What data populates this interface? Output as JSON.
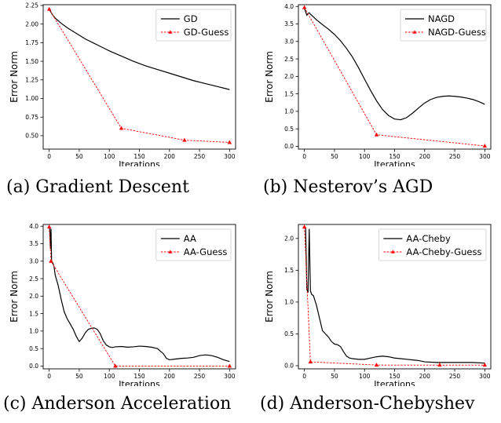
{
  "chart_data": [
    {
      "type": "line",
      "caption": "(a) Gradient Descent",
      "xlabel": "Iterations",
      "ylabel": "Error Norm",
      "xlim": [
        -10,
        310
      ],
      "ylim": [
        0.32,
        2.26
      ],
      "xticks": [
        0,
        50,
        100,
        150,
        200,
        250,
        300
      ],
      "yticks": [
        0.5,
        0.75,
        1.0,
        1.25,
        1.5,
        1.75,
        2.0,
        2.25
      ],
      "ytick_labels": [
        "0.50",
        "0.75",
        "1.00",
        "1.25",
        "1.50",
        "1.75",
        "2.00",
        "2.25"
      ],
      "legend_position": "top-right",
      "series": [
        {
          "name": "GD",
          "style": "solid",
          "color": "#000000",
          "x": [
            0,
            5,
            10,
            20,
            30,
            40,
            50,
            60,
            75,
            90,
            100,
            120,
            140,
            160,
            180,
            200,
            220,
            240,
            260,
            280,
            300
          ],
          "y": [
            2.2,
            2.13,
            2.08,
            2.01,
            1.95,
            1.9,
            1.85,
            1.8,
            1.74,
            1.68,
            1.64,
            1.57,
            1.5,
            1.44,
            1.39,
            1.34,
            1.29,
            1.24,
            1.2,
            1.16,
            1.12
          ]
        },
        {
          "name": "GD-Guess",
          "style": "dashed-marker",
          "color": "#ff0000",
          "x": [
            0,
            120,
            225,
            300
          ],
          "y": [
            2.2,
            0.6,
            0.44,
            0.41
          ]
        }
      ]
    },
    {
      "type": "line",
      "caption": "(b) Nesterov’s AGD",
      "xlabel": "Iterations",
      "ylabel": "Error Norm",
      "xlim": [
        -10,
        310
      ],
      "ylim": [
        -0.08,
        4.05
      ],
      "xticks": [
        0,
        50,
        100,
        150,
        200,
        250,
        300
      ],
      "yticks": [
        0.0,
        0.5,
        1.0,
        1.5,
        2.0,
        2.5,
        3.0,
        3.5,
        4.0
      ],
      "ytick_labels": [
        "0.0",
        "0.5",
        "1.0",
        "1.5",
        "2.0",
        "2.5",
        "3.0",
        "3.5",
        "4.0"
      ],
      "legend_position": "top-right",
      "series": [
        {
          "name": "NAGD",
          "style": "solid",
          "color": "#000000",
          "x": [
            0,
            2,
            4,
            6,
            8,
            10,
            15,
            20,
            30,
            40,
            50,
            60,
            70,
            80,
            90,
            100,
            110,
            120,
            130,
            140,
            150,
            160,
            170,
            180,
            190,
            200,
            210,
            220,
            230,
            240,
            250,
            260,
            270,
            280,
            290,
            300
          ],
          "y": [
            3.95,
            3.85,
            3.75,
            3.8,
            3.82,
            3.78,
            3.7,
            3.62,
            3.48,
            3.35,
            3.2,
            3.02,
            2.8,
            2.55,
            2.25,
            1.92,
            1.6,
            1.3,
            1.05,
            0.88,
            0.78,
            0.76,
            0.82,
            0.95,
            1.1,
            1.24,
            1.34,
            1.4,
            1.43,
            1.44,
            1.43,
            1.41,
            1.38,
            1.34,
            1.28,
            1.2
          ]
        },
        {
          "name": "NAGD-Guess",
          "style": "dashed-marker",
          "color": "#ff0000",
          "x": [
            0,
            120,
            300
          ],
          "y": [
            3.97,
            0.33,
            0.01
          ]
        }
      ]
    },
    {
      "type": "line",
      "caption": "(c) Anderson Acceleration",
      "xlabel": "Iterations",
      "ylabel": "Error Norm",
      "xlim": [
        -10,
        310
      ],
      "ylim": [
        -0.08,
        4.05
      ],
      "xticks": [
        0,
        50,
        100,
        150,
        200,
        250,
        300
      ],
      "yticks": [
        0.0,
        0.5,
        1.0,
        1.5,
        2.0,
        2.5,
        3.0,
        3.5,
        4.0
      ],
      "ytick_labels": [
        "0.0",
        "0.5",
        "1.0",
        "1.5",
        "2.0",
        "2.5",
        "3.0",
        "3.5",
        "4.0"
      ],
      "legend_position": "top-right",
      "series": [
        {
          "name": "AA",
          "style": "solid",
          "color": "#000000",
          "x": [
            0,
            1,
            2,
            3,
            4,
            6,
            8,
            10,
            15,
            20,
            25,
            30,
            35,
            40,
            45,
            50,
            55,
            60,
            65,
            70,
            75,
            80,
            85,
            90,
            95,
            100,
            105,
            110,
            120,
            130,
            140,
            150,
            160,
            170,
            180,
            190,
            195,
            200,
            210,
            220,
            230,
            240,
            250,
            260,
            270,
            280,
            290,
            300
          ],
          "y": [
            3.95,
            3.9,
            3.35,
            3.93,
            3.0,
            2.95,
            2.85,
            2.6,
            2.3,
            1.9,
            1.55,
            1.35,
            1.2,
            1.05,
            0.85,
            0.7,
            0.8,
            0.95,
            1.05,
            1.08,
            1.09,
            1.05,
            0.92,
            0.72,
            0.6,
            0.55,
            0.53,
            0.55,
            0.56,
            0.54,
            0.55,
            0.57,
            0.56,
            0.54,
            0.5,
            0.35,
            0.22,
            0.18,
            0.2,
            0.22,
            0.23,
            0.25,
            0.3,
            0.32,
            0.3,
            0.25,
            0.18,
            0.13
          ]
        },
        {
          "name": "AA-Guess",
          "style": "dashed-marker",
          "color": "#ff0000",
          "x": [
            0,
            3,
            110,
            300
          ],
          "y": [
            3.98,
            3.0,
            0.0,
            0.0
          ]
        }
      ]
    },
    {
      "type": "line",
      "caption": "(d) Anderson-Chebyshev",
      "xlabel": "Iterations",
      "ylabel": "Error Norm",
      "xlim": [
        -10,
        310
      ],
      "ylim": [
        -0.05,
        2.22
      ],
      "xticks": [
        0,
        50,
        100,
        150,
        200,
        250,
        300
      ],
      "yticks": [
        0.0,
        0.5,
        1.0,
        1.5,
        2.0
      ],
      "ytick_labels": [
        "0.0",
        "0.5",
        "1.0",
        "1.5",
        "2.0"
      ],
      "legend_position": "top-right",
      "series": [
        {
          "name": "AA-Cheby",
          "style": "solid",
          "color": "#000000",
          "x": [
            0,
            2,
            4,
            6,
            8,
            10,
            12,
            15,
            20,
            25,
            30,
            35,
            40,
            45,
            50,
            55,
            60,
            65,
            70,
            75,
            80,
            90,
            100,
            110,
            120,
            130,
            140,
            150,
            160,
            170,
            180,
            190,
            200,
            220,
            240,
            260,
            280,
            300
          ],
          "y": [
            2.18,
            2.17,
            1.2,
            1.15,
            2.15,
            1.18,
            1.12,
            1.1,
            0.95,
            0.75,
            0.55,
            0.5,
            0.45,
            0.38,
            0.34,
            0.33,
            0.3,
            0.22,
            0.15,
            0.12,
            0.11,
            0.1,
            0.1,
            0.12,
            0.14,
            0.15,
            0.14,
            0.12,
            0.11,
            0.1,
            0.09,
            0.08,
            0.06,
            0.05,
            0.05,
            0.05,
            0.05,
            0.04
          ]
        },
        {
          "name": "AA-Cheby-Guess",
          "style": "dashed-marker",
          "color": "#ff0000",
          "x": [
            0,
            10,
            120,
            225,
            300
          ],
          "y": [
            2.18,
            0.06,
            0.01,
            0.01,
            0.01
          ]
        }
      ]
    }
  ]
}
